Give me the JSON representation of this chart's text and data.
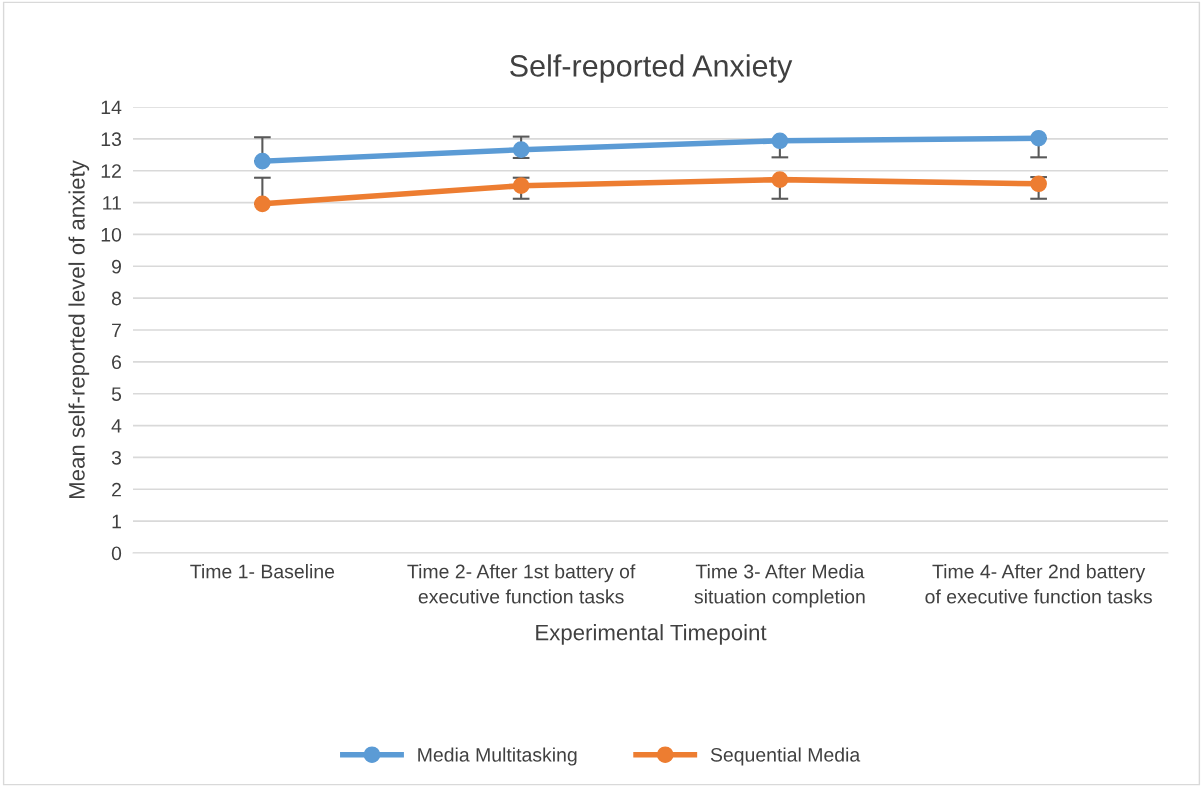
{
  "chart_data": {
    "type": "line",
    "title": "Self-reported Anxiety",
    "xlabel": "Experimental Timepoint",
    "ylabel": "Mean self-reported level of anxiety",
    "categories": [
      "Time 1- Baseline",
      "Time 2- After 1st battery of executive function tasks",
      "Time 3- After Media situation completion",
      "Time 4- After 2nd battery of executive function tasks"
    ],
    "series": [
      {
        "name": "Media Multitasking",
        "color": "#5b9bd5",
        "values": [
          12.3,
          12.66,
          12.94,
          13.02
        ],
        "errors": [
          [
            12.3,
            13.05
          ],
          [
            12.4,
            13.07
          ],
          [
            12.42,
            12.94
          ],
          [
            12.42,
            13.02
          ]
        ]
      },
      {
        "name": "Sequential Media",
        "color": "#ed7d31",
        "values": [
          10.96,
          11.53,
          11.72,
          11.59
        ],
        "errors": [
          [
            10.96,
            11.78
          ],
          [
            11.12,
            11.78
          ],
          [
            11.12,
            11.72
          ],
          [
            11.12,
            11.8
          ]
        ]
      }
    ],
    "ylim": [
      0,
      14
    ],
    "yticks": [
      0,
      1,
      2,
      3,
      4,
      5,
      6,
      7,
      8,
      9,
      10,
      11,
      12,
      13,
      14
    ],
    "grid": "y",
    "legend": "bottom",
    "marker": "circle",
    "line_style": "solid"
  }
}
